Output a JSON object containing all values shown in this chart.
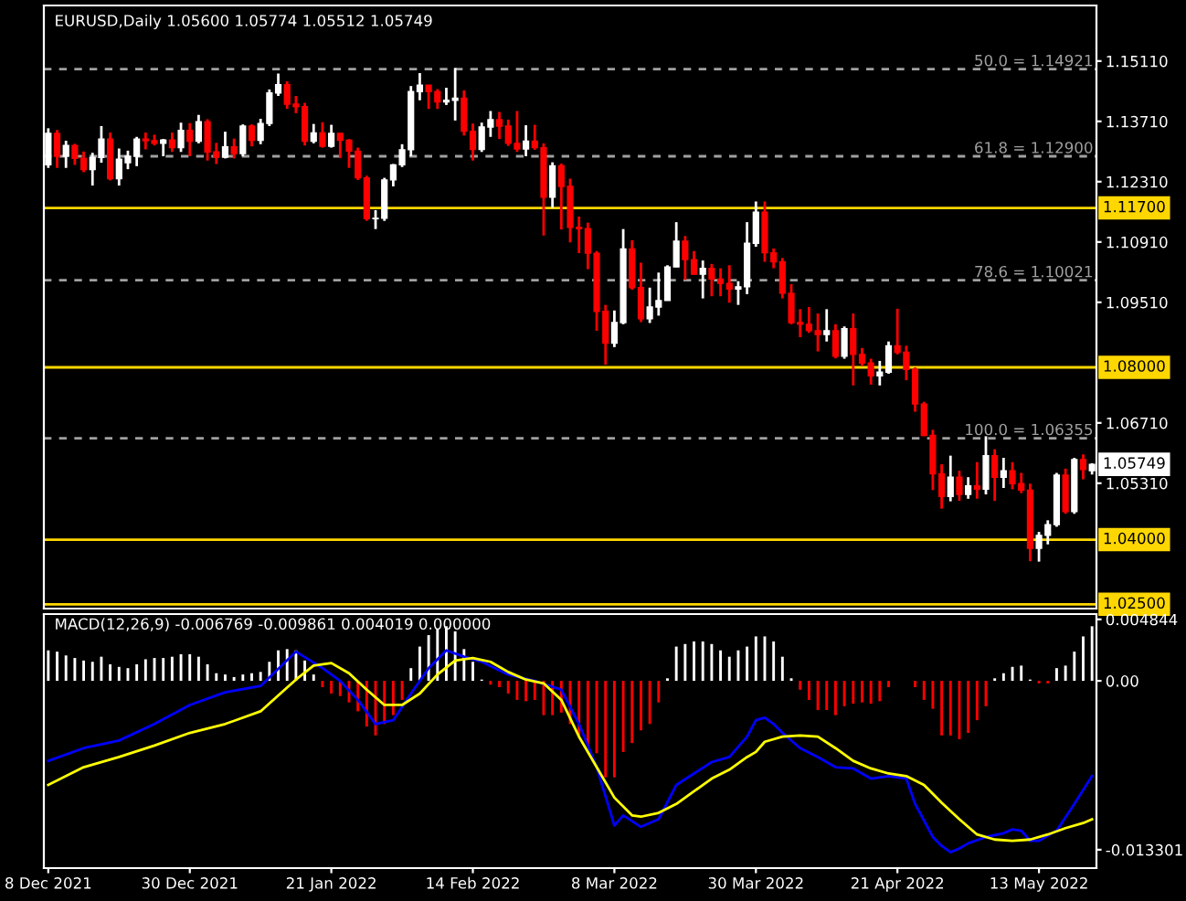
{
  "chart_data": [
    {
      "type": "candlestick",
      "title": "EURUSD,Daily 1.05600 1.05774 1.05512 1.05749",
      "categories": [
        null,
        null,
        null,
        null,
        null,
        null,
        null,
        null,
        null,
        null,
        null,
        null,
        null,
        null,
        null,
        null,
        null,
        null,
        null,
        null,
        null,
        null,
        null,
        null,
        null,
        null,
        null,
        null,
        null,
        null,
        null,
        null,
        null,
        null,
        null,
        null,
        null,
        null,
        null,
        null,
        null,
        null,
        null,
        null,
        null,
        null,
        null,
        null,
        null,
        null,
        null,
        null,
        null,
        null,
        null,
        null,
        null,
        null,
        null,
        null,
        null,
        null,
        null,
        null,
        null,
        null,
        null,
        null,
        null,
        null,
        null,
        null,
        null,
        null,
        null,
        null,
        null,
        null,
        null,
        null,
        null,
        null,
        null,
        null,
        null,
        null,
        null,
        null,
        null,
        null,
        null,
        null,
        null,
        null,
        null,
        null,
        null,
        null,
        null,
        null,
        null,
        null,
        null,
        null,
        null,
        null,
        null,
        null,
        null,
        null,
        null,
        null,
        null,
        null,
        null,
        null,
        null,
        null,
        null
      ],
      "ohlc": [
        [
          1.127,
          1.1355,
          1.1263,
          1.1343
        ],
        [
          1.1343,
          1.1351,
          1.1263,
          1.129
        ],
        [
          1.129,
          1.1326,
          1.1263,
          1.1315
        ],
        [
          1.1315,
          1.1319,
          1.127,
          1.1285
        ],
        [
          1.1285,
          1.1301,
          1.1253,
          1.1259
        ],
        [
          1.1259,
          1.1298,
          1.1222,
          1.1287
        ],
        [
          1.1287,
          1.136,
          1.1275,
          1.133
        ],
        [
          1.133,
          1.1345,
          1.1234,
          1.1238
        ],
        [
          1.1238,
          1.1308,
          1.1222,
          1.1283
        ],
        [
          1.1275,
          1.1303,
          1.126,
          1.129
        ],
        [
          1.129,
          1.1335,
          1.1267,
          1.133
        ],
        [
          1.133,
          1.1345,
          1.1306,
          1.1326
        ],
        [
          1.1326,
          1.134,
          1.1315,
          1.132
        ],
        [
          1.132,
          1.133,
          1.129,
          1.1328
        ],
        [
          1.1328,
          1.1345,
          1.13,
          1.131
        ],
        [
          1.131,
          1.1368,
          1.13,
          1.135
        ],
        [
          1.135,
          1.1367,
          1.129,
          1.1325
        ],
        [
          1.1325,
          1.1386,
          1.132,
          1.137
        ],
        [
          1.137,
          1.1376,
          1.128,
          1.13
        ],
        [
          1.13,
          1.1321,
          1.1272,
          1.1288
        ],
        [
          1.1288,
          1.1347,
          1.1285,
          1.1312
        ],
        [
          1.1312,
          1.1331,
          1.1285,
          1.1296
        ],
        [
          1.1296,
          1.1364,
          1.129,
          1.136
        ],
        [
          1.136,
          1.1364,
          1.1313,
          1.1327
        ],
        [
          1.1327,
          1.1377,
          1.1318,
          1.1366
        ],
        [
          1.1366,
          1.1445,
          1.136,
          1.1437
        ],
        [
          1.1437,
          1.1482,
          1.143,
          1.1456
        ],
        [
          1.1456,
          1.1464,
          1.14,
          1.1411
        ],
        [
          1.1411,
          1.143,
          1.139,
          1.1405
        ],
        [
          1.1405,
          1.1414,
          1.1315,
          1.1325
        ],
        [
          1.1325,
          1.1365,
          1.132,
          1.1344
        ],
        [
          1.1344,
          1.1369,
          1.131,
          1.1313
        ],
        [
          1.1313,
          1.1363,
          1.131,
          1.1343
        ],
        [
          1.1343,
          1.1344,
          1.1286,
          1.1327
        ],
        [
          1.1327,
          1.133,
          1.1263,
          1.1302
        ],
        [
          1.1302,
          1.131,
          1.1235,
          1.124
        ],
        [
          1.124,
          1.1245,
          1.114,
          1.1145
        ],
        [
          1.1145,
          1.1165,
          1.1121,
          1.1146
        ],
        [
          1.1146,
          1.124,
          1.114,
          1.1235
        ],
        [
          1.1235,
          1.1272,
          1.122,
          1.127
        ],
        [
          1.127,
          1.1318,
          1.1265,
          1.1305
        ],
        [
          1.1305,
          1.1453,
          1.129,
          1.144
        ],
        [
          1.144,
          1.1483,
          1.142,
          1.1455
        ],
        [
          1.1455,
          1.1455,
          1.14,
          1.144
        ],
        [
          1.144,
          1.1446,
          1.14,
          1.1416
        ],
        [
          1.1416,
          1.1449,
          1.1409,
          1.142
        ],
        [
          1.142,
          1.1495,
          1.1373,
          1.1425
        ],
        [
          1.1425,
          1.1443,
          1.1338,
          1.1348
        ],
        [
          1.1348,
          1.1366,
          1.128,
          1.1306
        ],
        [
          1.1306,
          1.1368,
          1.13,
          1.1358
        ],
        [
          1.1358,
          1.1395,
          1.1335,
          1.1375
        ],
        [
          1.1375,
          1.1393,
          1.133,
          1.136
        ],
        [
          1.136,
          1.1375,
          1.1314,
          1.132
        ],
        [
          1.132,
          1.1395,
          1.13,
          1.1307
        ],
        [
          1.1307,
          1.1362,
          1.129,
          1.1325
        ],
        [
          1.1325,
          1.1363,
          1.1305,
          1.131
        ],
        [
          1.131,
          1.132,
          1.1106,
          1.1195
        ],
        [
          1.1195,
          1.1276,
          1.117,
          1.1268
        ],
        [
          1.1268,
          1.1273,
          1.112,
          1.122
        ],
        [
          1.122,
          1.1238,
          1.109,
          1.1125
        ],
        [
          1.1125,
          1.115,
          1.1065,
          1.1122
        ],
        [
          1.1122,
          1.1136,
          1.1028,
          1.1065
        ],
        [
          1.1065,
          1.107,
          1.0885,
          1.093
        ],
        [
          1.093,
          1.0945,
          1.0806,
          1.0856
        ],
        [
          1.0856,
          1.0932,
          1.0847,
          1.0904
        ],
        [
          1.0904,
          1.1121,
          1.09,
          1.1075
        ],
        [
          1.1075,
          1.1095,
          1.098,
          1.0985
        ],
        [
          1.0985,
          1.1043,
          1.0905,
          1.0913
        ],
        [
          1.0913,
          1.0985,
          1.0903,
          1.094
        ],
        [
          1.094,
          1.102,
          1.092,
          1.0955
        ],
        [
          1.0955,
          1.1037,
          1.0955,
          1.1033
        ],
        [
          1.1033,
          1.1137,
          1.1033,
          1.1093
        ],
        [
          1.1093,
          1.1105,
          1.1003,
          1.105
        ],
        [
          1.105,
          1.107,
          1.1015,
          1.1016
        ],
        [
          1.1016,
          1.1048,
          1.096,
          1.103
        ],
        [
          1.103,
          1.104,
          1.0965,
          1.1005
        ],
        [
          1.1005,
          1.103,
          1.0965,
          1.0995
        ],
        [
          1.0995,
          1.1037,
          1.095,
          1.0982
        ],
        [
          1.0982,
          1.1,
          1.0945,
          1.0987
        ],
        [
          1.0987,
          1.1137,
          1.097,
          1.1088
        ],
        [
          1.1088,
          1.1185,
          1.108,
          1.116
        ],
        [
          1.116,
          1.1185,
          1.1045,
          1.1066
        ],
        [
          1.1066,
          1.1076,
          1.103,
          1.1045
        ],
        [
          1.1045,
          1.1054,
          1.096,
          1.0972
        ],
        [
          1.0972,
          1.0993,
          1.09,
          1.0904
        ],
        [
          1.0904,
          1.0935,
          1.087,
          1.09
        ],
        [
          1.09,
          1.094,
          1.088,
          1.0885
        ],
        [
          1.0885,
          1.0925,
          1.0837,
          1.0876
        ],
        [
          1.0876,
          1.0935,
          1.086,
          1.0885
        ],
        [
          1.0885,
          1.09,
          1.0821,
          1.0826
        ],
        [
          1.0826,
          1.0895,
          1.082,
          1.089
        ],
        [
          1.089,
          1.0925,
          1.0758,
          1.083
        ],
        [
          1.083,
          1.0845,
          1.0803,
          1.081
        ],
        [
          1.081,
          1.082,
          1.076,
          1.078
        ],
        [
          1.078,
          1.0815,
          1.0758,
          1.0789
        ],
        [
          1.0789,
          1.086,
          1.0785,
          1.085
        ],
        [
          1.085,
          1.0936,
          1.083,
          1.0835
        ],
        [
          1.0835,
          1.085,
          1.077,
          1.0795
        ],
        [
          1.0795,
          1.08,
          1.0697,
          1.0715
        ],
        [
          1.0715,
          1.072,
          1.064,
          1.0642
        ],
        [
          1.0642,
          1.0655,
          1.0515,
          1.0553
        ],
        [
          1.0553,
          1.0575,
          1.0472,
          1.05
        ],
        [
          1.05,
          1.0595,
          1.0489,
          1.0545
        ],
        [
          1.0545,
          1.056,
          1.049,
          1.0505
        ],
        [
          1.0505,
          1.0545,
          1.0495,
          1.0525
        ],
        [
          1.0525,
          1.058,
          1.0495,
          1.0517
        ],
        [
          1.0517,
          1.064,
          1.0505,
          1.0595
        ],
        [
          1.0595,
          1.061,
          1.049,
          1.0545
        ],
        [
          1.0545,
          1.059,
          1.052,
          1.056
        ],
        [
          1.056,
          1.058,
          1.0517,
          1.053
        ],
        [
          1.053,
          1.0555,
          1.0508,
          1.0515
        ],
        [
          1.0515,
          1.053,
          1.035,
          1.038
        ],
        [
          1.038,
          1.0418,
          1.0349,
          1.041
        ],
        [
          1.041,
          1.0445,
          1.0389,
          1.0435
        ],
        [
          1.0435,
          1.0555,
          1.043,
          1.055
        ],
        [
          1.055,
          1.0565,
          1.046,
          1.0465
        ],
        [
          1.0465,
          1.059,
          1.046,
          1.0586
        ],
        [
          1.0586,
          1.0598,
          1.054,
          1.0563
        ],
        [
          1.056,
          1.05774,
          1.05512,
          1.05749
        ]
      ],
      "colors": [
        "#ffffff",
        "#ff0000",
        "#ffffff",
        "#ff0000",
        "#ff0000",
        "#ffffff",
        "#ffffff",
        "#ff0000",
        "#ffffff",
        "#ffffff",
        "#ffffff",
        "#ff0000",
        "#ff0000",
        "#ffffff",
        "#ff0000",
        "#ffffff",
        "#ff0000",
        "#ffffff",
        "#ff0000",
        "#ff0000",
        "#ffffff",
        "#ff0000",
        "#ffffff",
        "#ff0000",
        "#ffffff",
        "#ffffff",
        "#ffffff",
        "#ff0000",
        "#ff0000",
        "#ff0000",
        "#ffffff",
        "#ff0000",
        "#ffffff",
        "#ff0000",
        "#ff0000",
        "#ff0000",
        "#ff0000",
        "#ffffff",
        "#ffffff",
        "#ffffff",
        "#ffffff",
        "#ffffff",
        "#ffffff",
        "#ff0000",
        "#ff0000",
        "#ffffff",
        "#ffffff",
        "#ff0000",
        "#ff0000",
        "#ffffff",
        "#ffffff",
        "#ff0000",
        "#ff0000",
        "#ff0000",
        "#ffffff",
        "#ff0000",
        "#ff0000",
        "#ffffff",
        "#ff0000",
        "#ff0000",
        "#ff0000",
        "#ff0000",
        "#ff0000",
        "#ff0000",
        "#ffffff",
        "#ffffff",
        "#ff0000",
        "#ff0000",
        "#ffffff",
        "#ffffff",
        "#ffffff",
        "#ffffff",
        "#ff0000",
        "#ff0000",
        "#ffffff",
        "#ff0000",
        "#ff0000",
        "#ff0000",
        "#ffffff",
        "#ffffff",
        "#ffffff",
        "#ff0000",
        "#ff0000",
        "#ff0000",
        "#ff0000",
        "#ff0000",
        "#ff0000",
        "#ff0000",
        "#ffffff",
        "#ff0000",
        "#ffffff",
        "#ff0000",
        "#ff0000",
        "#ff0000",
        "#ffffff",
        "#ffffff",
        "#ff0000",
        "#ff0000",
        "#ff0000",
        "#ff0000",
        "#ff0000",
        "#ff0000",
        "#ffffff",
        "#ff0000",
        "#ffffff",
        "#ff0000",
        "#ffffff",
        "#ff0000",
        "#ffffff",
        "#ff0000",
        "#ff0000",
        "#ff0000",
        "#ffffff",
        "#ffffff",
        "#ffffff",
        "#ff0000",
        "#ffffff",
        "#ff0000",
        "#ffffff"
      ],
      "ylim": [
        1.024,
        1.164
      ],
      "yticks": [
        {
          "value": 1.0531,
          "label": "1.05310"
        },
        {
          "value": 1.0671,
          "label": "1.06710"
        },
        {
          "value": 1.0951,
          "label": "1.09510"
        },
        {
          "value": 1.1091,
          "label": "1.10910"
        },
        {
          "value": 1.1231,
          "label": "1.12310"
        },
        {
          "value": 1.1371,
          "label": "1.13710"
        },
        {
          "value": 1.1511,
          "label": "1.15110"
        }
      ],
      "ref_lines": [
        {
          "axis": "y",
          "value": 1.117,
          "label": "1.11700",
          "color": "#ffd700",
          "line_style": "solid"
        },
        {
          "axis": "y",
          "value": 1.08,
          "label": "1.08000",
          "color": "#ffd700",
          "line_style": "solid"
        },
        {
          "axis": "y",
          "value": 1.04,
          "label": "1.04000",
          "color": "#ffd700",
          "line_style": "solid"
        },
        {
          "axis": "y",
          "value": 1.025,
          "label": "1.02500",
          "color": "#ffd700",
          "line_style": "solid"
        },
        {
          "axis": "y",
          "value": 1.14921,
          "label": "50.0 = 1.14921",
          "color": "#a0a0a0",
          "line_style": "dashed"
        },
        {
          "axis": "y",
          "value": 1.129,
          "label": "61.8 = 1.12900",
          "color": "#a0a0a0",
          "line_style": "dashed"
        },
        {
          "axis": "y",
          "value": 1.10021,
          "label": "78.6 = 1.10021",
          "color": "#a0a0a0",
          "line_style": "dashed"
        },
        {
          "axis": "y",
          "value": 1.06355,
          "label": "100.0 = 1.06355",
          "color": "#a0a0a0",
          "line_style": "dashed"
        }
      ],
      "annotations": [
        "1.05749"
      ],
      "tick_labels": "y"
    },
    {
      "type": "bar",
      "title": "MACD(12,26,9) -0.006769 -0.009861 0.004019 0.000000",
      "categories": [
        "8 Dec 2021",
        null,
        null,
        null,
        null,
        null,
        null,
        null,
        null,
        null,
        null,
        null,
        null,
        null,
        null,
        null,
        "30 Dec 2021",
        null,
        null,
        null,
        null,
        null,
        null,
        null,
        null,
        null,
        null,
        null,
        null,
        null,
        null,
        null,
        "21 Jan 2022",
        null,
        null,
        null,
        null,
        null,
        null,
        null,
        null,
        null,
        null,
        null,
        null,
        null,
        null,
        null,
        "14 Feb 2022",
        null,
        null,
        null,
        null,
        null,
        null,
        null,
        null,
        null,
        null,
        null,
        null,
        null,
        null,
        null,
        "8 Mar 2022",
        null,
        null,
        null,
        null,
        null,
        null,
        null,
        null,
        null,
        null,
        null,
        null,
        null,
        null,
        null,
        "30 Mar 2022",
        null,
        null,
        null,
        null,
        null,
        null,
        null,
        null,
        null,
        null,
        null,
        null,
        null,
        null,
        null,
        "21 Apr 2022",
        null,
        null,
        null,
        null,
        null,
        null,
        null,
        null,
        null,
        null,
        null,
        null,
        null,
        null,
        null,
        "13 May 2022",
        null,
        null,
        null,
        null,
        null,
        null
      ],
      "series": [
        {
          "type": "bar",
          "values": [
            0.0024,
            0.0023,
            0.002,
            0.0018,
            0.0016,
            0.0015,
            0.0019,
            0.0013,
            0.0011,
            0.001,
            0.0013,
            0.0017,
            0.0018,
            0.0018,
            0.0019,
            0.0021,
            0.0021,
            0.0019,
            0.0013,
            0.0006,
            0.0005,
            0.0003,
            0.0005,
            0.0006,
            0.0007,
            0.0015,
            0.0024,
            0.0025,
            0.0024,
            0.0016,
            0.0005,
            -0.0005,
            -0.001,
            -0.0012,
            -0.0017,
            -0.0024,
            -0.0036,
            -0.0043,
            -0.0034,
            -0.0027,
            -0.0015,
            0.001,
            0.0027,
            0.0036,
            0.0041,
            0.0043,
            0.0039,
            0.0025,
            0.0015,
            0.0001,
            -0.0003,
            -0.0005,
            -0.001,
            -0.0015,
            -0.0016,
            -0.0015,
            -0.0027,
            -0.0027,
            -0.0025,
            -0.0034,
            -0.0043,
            -0.0051,
            -0.0057,
            -0.0076,
            -0.0076,
            -0.0056,
            -0.0049,
            -0.0039,
            -0.0034,
            -0.0017,
            0.0002,
            0.0027,
            0.0029,
            0.0031,
            0.0031,
            0.0029,
            0.0024,
            0.0019,
            0.0024,
            0.0027,
            0.0035,
            0.0035,
            0.0031,
            0.0019,
            0.0002,
            -0.0007,
            -0.0015,
            -0.0023,
            -0.0023,
            -0.0027,
            -0.002,
            -0.0018,
            -0.0017,
            -0.0018,
            -0.0016,
            -0.0005,
            null,
            null,
            -0.0005,
            -0.0015,
            -0.0022,
            -0.0043,
            -0.0043,
            -0.0046,
            -0.0041,
            -0.0031,
            -0.002,
            0.0002,
            0.0006,
            0.0011,
            0.0012,
            0.0001,
            -0.0002,
            -0.0002,
            0.001,
            0.0012,
            0.0023,
            0.0035,
            0.0043
          ],
          "colors": [
            "#ffffff",
            "#ffffff",
            "#ffffff",
            "#ffffff",
            "#ffffff",
            "#ffffff",
            "#ffffff",
            "#ffffff",
            "#ffffff",
            "#ffffff",
            "#ffffff",
            "#ffffff",
            "#ffffff",
            "#ffffff",
            "#ffffff",
            "#ffffff",
            "#ffffff",
            "#ffffff",
            "#ffffff",
            "#ffffff",
            "#ffffff",
            "#ffffff",
            "#ffffff",
            "#ffffff",
            "#ffffff",
            "#ffffff",
            "#ffffff",
            "#ffffff",
            "#ffffff",
            "#ffffff",
            "#ffffff",
            "#ff0000",
            "#ff0000",
            "#ff0000",
            "#ff0000",
            "#ff0000",
            "#ff0000",
            "#ff0000",
            "#ff0000",
            "#ff0000",
            "#ff0000",
            "#ffffff",
            "#ffffff",
            "#ffffff",
            "#ffffff",
            "#ffffff",
            "#ffffff",
            "#ffffff",
            "#ffffff",
            "#ffffff",
            "#ff0000",
            "#ff0000",
            "#ff0000",
            "#ff0000",
            "#ff0000",
            "#ff0000",
            "#ff0000",
            "#ff0000",
            "#ff0000",
            "#ff0000",
            "#ff0000",
            "#ff0000",
            "#ff0000",
            "#ff0000",
            "#ff0000",
            "#ff0000",
            "#ff0000",
            "#ff0000",
            "#ff0000",
            "#ff0000",
            "#ffffff",
            "#ffffff",
            "#ffffff",
            "#ffffff",
            "#ffffff",
            "#ffffff",
            "#ffffff",
            "#ffffff",
            "#ffffff",
            "#ffffff",
            "#ffffff",
            "#ffffff",
            "#ffffff",
            "#ffffff",
            "#ffffff",
            "#ff0000",
            "#ff0000",
            "#ff0000",
            "#ff0000",
            "#ff0000",
            "#ff0000",
            "#ff0000",
            "#ff0000",
            "#ff0000",
            "#ff0000",
            "#ff0000",
            "#ffffff",
            "#ffffff",
            "#ff0000",
            "#ff0000",
            "#ff0000",
            "#ff0000",
            "#ff0000",
            "#ff0000",
            "#ff0000",
            "#ff0000",
            "#ff0000",
            "#ffffff",
            "#ffffff",
            "#ffffff",
            "#ffffff",
            "#ffffff",
            "#ff0000",
            "#ff0000",
            "#ffffff",
            "#ffffff",
            "#ffffff",
            "#ffffff",
            "#ffffff"
          ]
        },
        {
          "type": "line",
          "color": "#0000ff",
          "values": [
            -0.0063,
            null,
            null,
            null,
            -0.0053,
            null,
            null,
            null,
            -0.0047,
            null,
            null,
            null,
            -0.0034,
            null,
            null,
            null,
            -0.0019,
            null,
            null,
            null,
            -0.0009,
            null,
            null,
            null,
            -0.0004,
            null,
            null,
            null,
            0.0023,
            null,
            null,
            0.001,
            null,
            0.0,
            null,
            -0.0015,
            null,
            -0.0034,
            null,
            -0.0031,
            null,
            -0.001,
            null,
            0.001,
            null,
            0.0024,
            null,
            0.0019,
            null,
            0.0015,
            null,
            null,
            0.0005,
            null,
            null,
            0.0,
            null,
            null,
            -0.0007,
            null,
            -0.0034,
            null,
            -0.0068,
            null,
            -0.0114,
            -0.0106,
            null,
            -0.0115,
            null,
            -0.0109,
            null,
            -0.0082,
            null,
            -0.0073,
            null,
            -0.0064,
            null,
            -0.006,
            null,
            -0.0044,
            -0.0031,
            -0.0029,
            -0.0034,
            -0.0041,
            null,
            -0.0053,
            null,
            -0.006,
            null,
            -0.0068,
            null,
            -0.0069,
            null,
            -0.0077,
            null,
            -0.0075,
            null,
            -0.0077,
            -0.0097,
            null,
            -0.0123,
            -0.013,
            -0.0135,
            -0.0132,
            -0.0128,
            null,
            -0.0123,
            null,
            -0.012,
            -0.0117,
            -0.0118,
            -0.0126,
            -0.0126,
            null,
            -0.0118,
            null,
            -0.0097,
            null,
            -0.0075
          ]
        },
        {
          "type": "line",
          "color": "#ffff00",
          "values": [
            -0.0082,
            null,
            null,
            null,
            -0.0068,
            null,
            null,
            null,
            -0.006,
            null,
            null,
            null,
            -0.0051,
            null,
            null,
            null,
            -0.0041,
            null,
            null,
            null,
            -0.0034,
            null,
            null,
            null,
            -0.0024,
            null,
            null,
            null,
            0.0001,
            null,
            0.0012,
            null,
            0.0014,
            null,
            0.0006,
            null,
            -0.0007,
            null,
            -0.0019,
            null,
            -0.0019,
            null,
            -0.001,
            null,
            0.0005,
            null,
            0.0016,
            null,
            0.0018,
            null,
            0.0015,
            null,
            0.0007,
            null,
            0.0001,
            null,
            -0.0002,
            null,
            -0.0015,
            null,
            -0.0044,
            null,
            -0.0068,
            null,
            -0.0092,
            null,
            -0.0106,
            -0.0107,
            null,
            -0.0104,
            null,
            -0.0097,
            null,
            -0.0087,
            null,
            -0.0077,
            null,
            -0.007,
            null,
            -0.006,
            -0.0056,
            -0.0048,
            null,
            -0.0044,
            null,
            -0.0043,
            null,
            -0.0044,
            null,
            -0.0053,
            null,
            -0.0063,
            null,
            -0.0069,
            null,
            -0.0073,
            null,
            -0.0075,
            null,
            -0.0082,
            null,
            -0.0096,
            null,
            -0.0109,
            null,
            -0.0121,
            null,
            -0.0125,
            null,
            -0.0126,
            null,
            -0.0125,
            null,
            -0.0121,
            null,
            -0.0116,
            null,
            -0.0112,
            -0.0109
          ]
        }
      ],
      "ylim": [
        -0.01475,
        0.00526
      ],
      "yticks": [
        {
          "value": -0.013301,
          "label": "-0.013301"
        },
        {
          "value": 0,
          "label": "0.00"
        },
        {
          "value": 0.004844,
          "label": "0.004844"
        }
      ]
    }
  ]
}
